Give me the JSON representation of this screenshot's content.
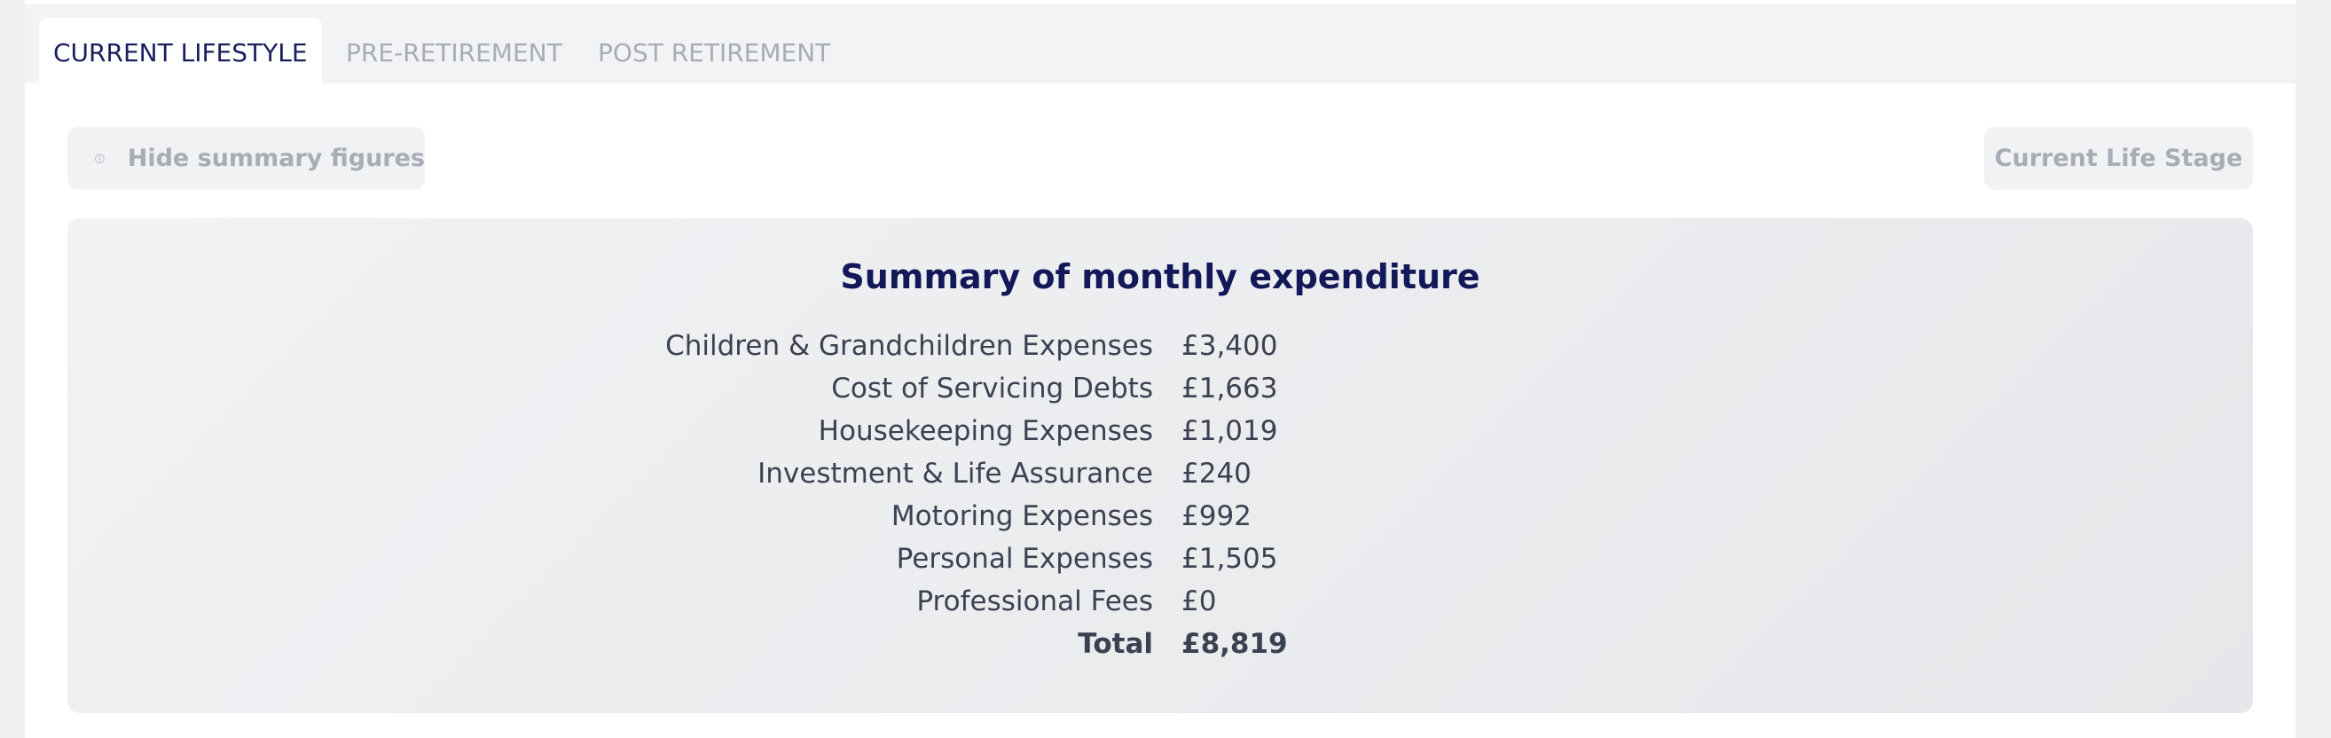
{
  "tabs": [
    {
      "label": "CURRENT LIFESTYLE",
      "active": true
    },
    {
      "label": "PRE-RETIREMENT",
      "active": false
    },
    {
      "label": "POST RETIREMENT",
      "active": false
    }
  ],
  "toolbar": {
    "hide_summary_label": "Hide summary figures",
    "hide_summary_icon": "info-icon",
    "life_stage_label": "Current Life Stage"
  },
  "summary": {
    "title": "Summary of monthly expenditure",
    "rows": [
      {
        "label": "Children & Grandchildren Expenses",
        "value": "£3,400"
      },
      {
        "label": "Cost of Servicing Debts",
        "value": "£1,663"
      },
      {
        "label": "Housekeeping Expenses",
        "value": "£1,019"
      },
      {
        "label": "Investment & Life Assurance",
        "value": "£240"
      },
      {
        "label": "Motoring Expenses",
        "value": "£992"
      },
      {
        "label": "Personal Expenses",
        "value": "£1,505"
      },
      {
        "label": "Professional Fees",
        "value": "£0"
      }
    ],
    "total": {
      "label": "Total",
      "value": "£8,819"
    }
  },
  "colors": {
    "accent": "#121858",
    "muted_text": "#a8acb5",
    "body_text": "#3c4152"
  }
}
